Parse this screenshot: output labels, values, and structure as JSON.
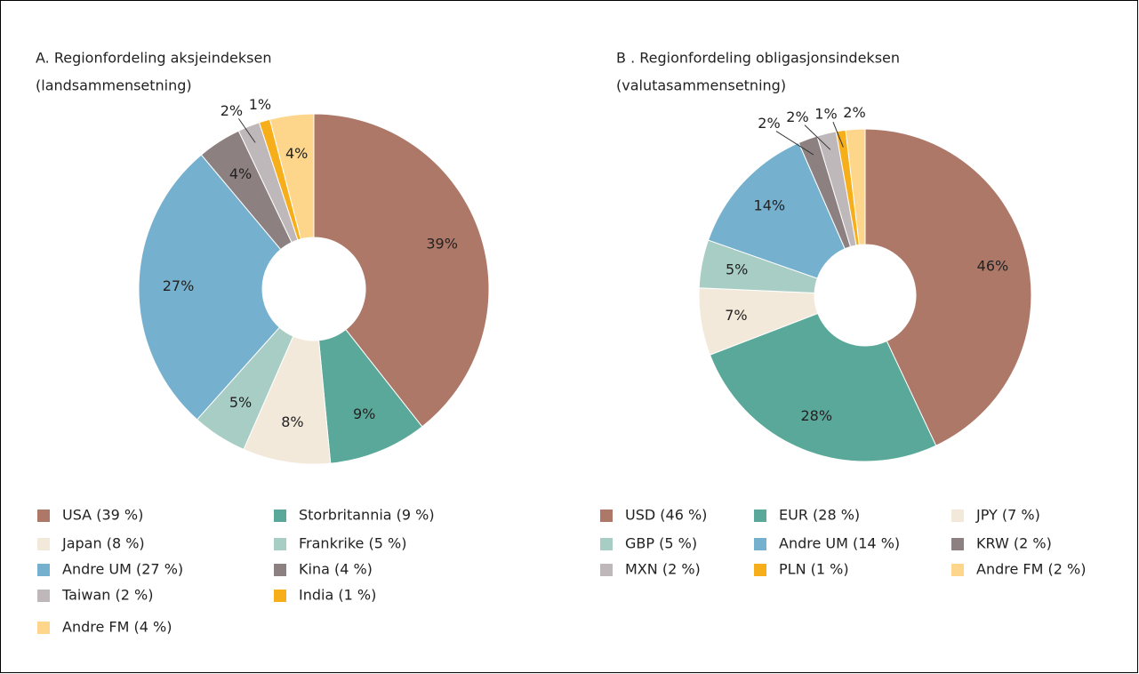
{
  "chart_data": [
    {
      "type": "pie",
      "title": "A.  Regionfordeling aksjeindeksen",
      "subtitle": "(landsammensetning)",
      "categories": [
        "USA (39 %)",
        "Storbritannia (9 %)",
        "Japan (8 %)",
        "Frankrike (5 %)",
        "Andre UM (27 %)",
        "Kina (4 %)",
        "Taiwan (2 %)",
        "India (1 %)",
        "Andre FM (4 %)"
      ],
      "values": [
        39,
        9,
        8,
        5,
        27,
        4,
        2,
        1,
        4
      ],
      "value_labels": [
        "39%",
        "9%",
        "8%",
        "5%",
        "27%",
        "4%",
        "2%",
        "1%",
        "4%"
      ],
      "colors": [
        "#ad7867",
        "#5aa899",
        "#f3e9da",
        "#a8cdc4",
        "#75b0cf",
        "#8c8081",
        "#bfb8ba",
        "#f6ae1b",
        "#fdd58b"
      ]
    },
    {
      "type": "pie",
      "title": "B .  Regionfordeling obligasjonsindeksen",
      "subtitle": "(valutasammensetning)",
      "categories": [
        "USD (46 %)",
        "EUR (28 %)",
        "JPY (7 %)",
        "GBP (5 %)",
        "Andre UM (14 %)",
        "KRW (2 %)",
        "MXN (2 %)",
        "PLN (1 %)",
        "Andre FM (2 %)"
      ],
      "values": [
        46,
        28,
        7,
        5,
        14,
        2,
        2,
        1,
        2
      ],
      "value_labels": [
        "46%",
        "28%",
        "7%",
        "5%",
        "14%",
        "2%",
        "2%",
        "1%",
        "2%"
      ],
      "colors": [
        "#ad7867",
        "#5aa899",
        "#f3e9da",
        "#a8cdc4",
        "#75b0cf",
        "#8c8081",
        "#bfb8ba",
        "#f6ae1b",
        "#fdd58b"
      ]
    }
  ]
}
